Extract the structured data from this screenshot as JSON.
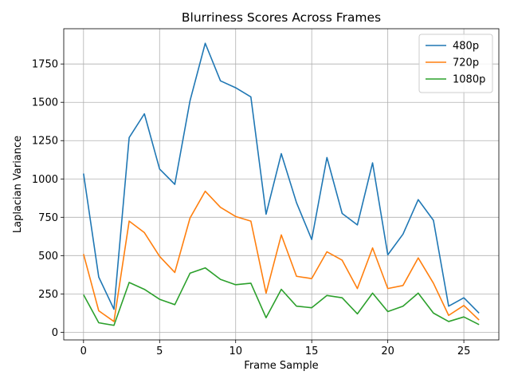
{
  "chart_data": {
    "type": "line",
    "title": "Blurriness Scores Across Frames",
    "xlabel": "Frame Sample",
    "ylabel": "Laplacian Variance",
    "xlim": [
      -1.3,
      27.3
    ],
    "ylim": [
      -50,
      1980
    ],
    "xticks": [
      0,
      5,
      10,
      15,
      20,
      25
    ],
    "yticks": [
      0,
      250,
      500,
      750,
      1000,
      1250,
      1500,
      1750
    ],
    "grid": true,
    "legend_position": "top-right",
    "x": [
      0,
      1,
      2,
      3,
      4,
      5,
      6,
      7,
      8,
      9,
      10,
      11,
      12,
      13,
      14,
      15,
      16,
      17,
      18,
      19,
      20,
      21,
      22,
      23,
      24,
      25,
      26
    ],
    "series": [
      {
        "name": "480p",
        "color": "#1f77b4",
        "values": [
          1035,
          360,
          150,
          1270,
          1425,
          1065,
          965,
          1510,
          1885,
          1640,
          1595,
          1535,
          770,
          1165,
          845,
          605,
          1140,
          775,
          700,
          1105,
          505,
          640,
          865,
          730,
          170,
          225,
          125
        ]
      },
      {
        "name": "720p",
        "color": "#ff7f0e",
        "values": [
          510,
          140,
          70,
          725,
          650,
          495,
          390,
          745,
          920,
          815,
          755,
          725,
          255,
          635,
          365,
          350,
          525,
          470,
          285,
          550,
          285,
          305,
          485,
          320,
          110,
          175,
          80
        ]
      },
      {
        "name": "1080p",
        "color": "#2ca02c",
        "values": [
          245,
          62,
          45,
          325,
          280,
          215,
          180,
          385,
          420,
          345,
          310,
          320,
          95,
          280,
          170,
          160,
          240,
          225,
          120,
          255,
          135,
          170,
          255,
          125,
          70,
          100,
          50
        ]
      }
    ]
  }
}
